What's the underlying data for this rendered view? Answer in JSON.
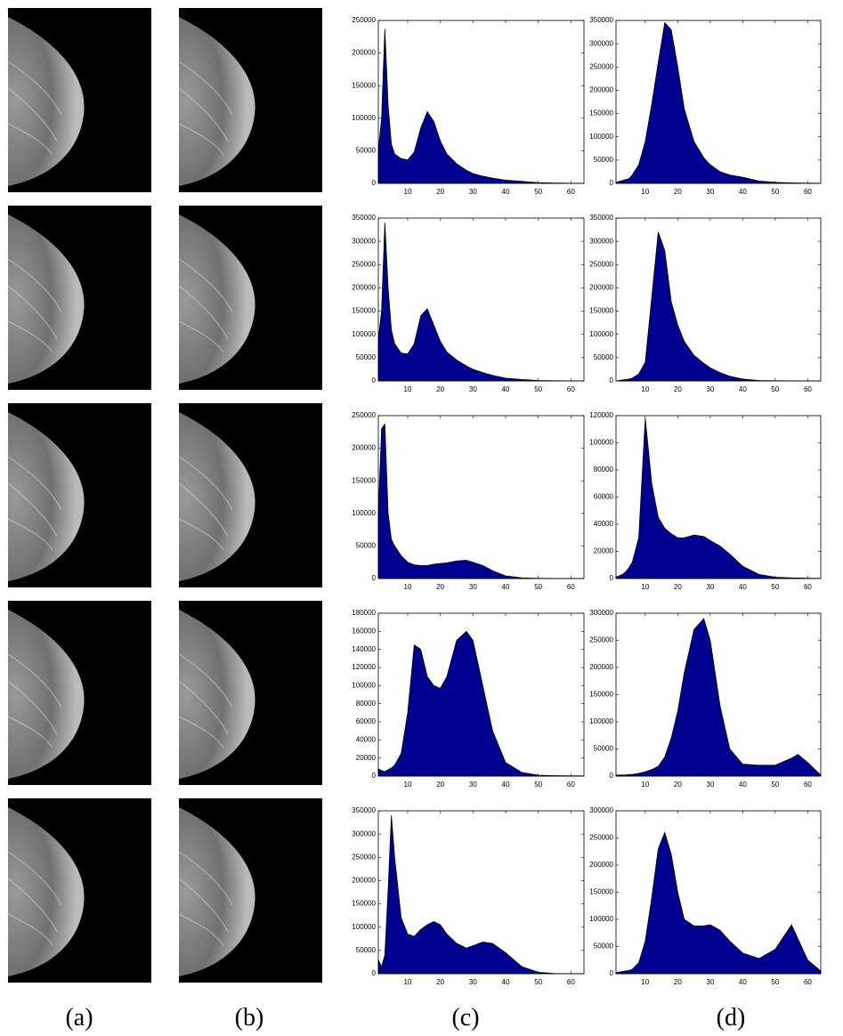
{
  "chart_data": [
    {
      "type": "area",
      "color": "#000090",
      "xlim": [
        1,
        64
      ],
      "xticks": [
        10,
        20,
        30,
        40,
        50,
        60
      ],
      "ylim": [
        0,
        250000
      ],
      "yticks": [
        0,
        50000,
        100000,
        150000,
        200000,
        250000
      ],
      "x": [
        1,
        2,
        3,
        4,
        5,
        6,
        8,
        10,
        12,
        14,
        16,
        18,
        20,
        22,
        25,
        28,
        30,
        33,
        36,
        40,
        45,
        50,
        55,
        60,
        64
      ],
      "values": [
        50000,
        100000,
        237000,
        120000,
        60000,
        45000,
        38000,
        36000,
        48000,
        85000,
        110000,
        95000,
        65000,
        45000,
        30000,
        20000,
        15000,
        11000,
        8000,
        5000,
        3000,
        1000,
        500,
        200,
        100
      ]
    },
    {
      "type": "area",
      "color": "#000090",
      "xlim": [
        1,
        64
      ],
      "xticks": [
        10,
        20,
        30,
        40,
        50,
        60
      ],
      "ylim": [
        0,
        350000
      ],
      "yticks": [
        0,
        50000,
        100000,
        150000,
        200000,
        250000,
        300000,
        350000
      ],
      "x": [
        1,
        2,
        3,
        4,
        5,
        6,
        8,
        10,
        12,
        14,
        16,
        18,
        20,
        22,
        25,
        28,
        30,
        33,
        36,
        40,
        45,
        50,
        55,
        60,
        64
      ],
      "values": [
        2000,
        4000,
        6000,
        8000,
        10000,
        18000,
        40000,
        90000,
        170000,
        260000,
        345000,
        330000,
        250000,
        160000,
        90000,
        55000,
        40000,
        25000,
        18000,
        13000,
        5000,
        2000,
        1000,
        500,
        200
      ]
    },
    {
      "type": "area",
      "color": "#000090",
      "xlim": [
        1,
        64
      ],
      "xticks": [
        10,
        20,
        30,
        40,
        50,
        60
      ],
      "ylim": [
        0,
        350000
      ],
      "yticks": [
        0,
        50000,
        100000,
        150000,
        200000,
        250000,
        300000,
        350000
      ],
      "x": [
        1,
        2,
        3,
        4,
        5,
        6,
        8,
        10,
        12,
        14,
        16,
        18,
        20,
        22,
        25,
        28,
        30,
        33,
        36,
        40,
        45,
        50,
        55,
        60,
        64
      ],
      "values": [
        90000,
        150000,
        340000,
        200000,
        110000,
        80000,
        60000,
        58000,
        80000,
        140000,
        155000,
        120000,
        85000,
        62000,
        45000,
        32000,
        25000,
        18000,
        12000,
        6000,
        3000,
        1000,
        500,
        200,
        100
      ]
    },
    {
      "type": "area",
      "color": "#000090",
      "xlim": [
        1,
        64
      ],
      "xticks": [
        10,
        20,
        30,
        40,
        50,
        60
      ],
      "ylim": [
        0,
        350000
      ],
      "yticks": [
        0,
        50000,
        100000,
        150000,
        200000,
        250000,
        300000,
        350000
      ],
      "x": [
        1,
        2,
        3,
        4,
        5,
        6,
        8,
        10,
        12,
        14,
        16,
        18,
        20,
        22,
        25,
        28,
        30,
        33,
        36,
        40,
        45,
        50,
        55,
        60,
        64
      ],
      "values": [
        0,
        1000,
        2000,
        3000,
        4000,
        6000,
        15000,
        40000,
        180000,
        320000,
        280000,
        170000,
        120000,
        85000,
        55000,
        38000,
        28000,
        18000,
        10000,
        4000,
        1000,
        500,
        200,
        100,
        0
      ]
    },
    {
      "type": "area",
      "color": "#000090",
      "xlim": [
        1,
        64
      ],
      "xticks": [
        10,
        20,
        30,
        40,
        50,
        60
      ],
      "ylim": [
        0,
        250000
      ],
      "yticks": [
        0,
        50000,
        100000,
        150000,
        200000,
        250000
      ],
      "x": [
        1,
        2,
        3,
        4,
        5,
        6,
        8,
        10,
        12,
        14,
        16,
        18,
        20,
        22,
        25,
        28,
        30,
        33,
        36,
        40,
        45,
        50,
        55,
        60,
        64
      ],
      "values": [
        100000,
        230000,
        237000,
        100000,
        60000,
        50000,
        35000,
        25000,
        21000,
        20000,
        20000,
        22000,
        23000,
        24000,
        27000,
        28000,
        25000,
        20000,
        12000,
        4000,
        1000,
        300,
        100,
        50,
        0
      ]
    },
    {
      "type": "area",
      "color": "#000090",
      "xlim": [
        1,
        64
      ],
      "xticks": [
        10,
        20,
        30,
        40,
        50,
        60
      ],
      "ylim": [
        0,
        120000
      ],
      "yticks": [
        0,
        20000,
        40000,
        60000,
        80000,
        100000,
        120000
      ],
      "x": [
        1,
        2,
        3,
        4,
        5,
        6,
        8,
        10,
        12,
        14,
        16,
        18,
        20,
        22,
        25,
        28,
        30,
        33,
        36,
        40,
        45,
        50,
        55,
        60,
        64
      ],
      "values": [
        1000,
        2000,
        3000,
        5000,
        8000,
        12000,
        30000,
        118000,
        70000,
        45000,
        37000,
        33000,
        30000,
        30000,
        32000,
        31000,
        28000,
        24000,
        18000,
        9000,
        3000,
        1000,
        500,
        200,
        100
      ]
    },
    {
      "type": "area",
      "color": "#000090",
      "xlim": [
        1,
        64
      ],
      "xticks": [
        10,
        20,
        30,
        40,
        50,
        60
      ],
      "ylim": [
        0,
        180000
      ],
      "yticks": [
        0,
        20000,
        40000,
        60000,
        80000,
        100000,
        120000,
        140000,
        160000,
        180000
      ],
      "x": [
        1,
        2,
        3,
        4,
        5,
        6,
        8,
        10,
        12,
        14,
        16,
        18,
        20,
        22,
        25,
        28,
        30,
        33,
        36,
        40,
        45,
        50,
        55,
        60,
        64
      ],
      "values": [
        8000,
        6000,
        5000,
        7000,
        9000,
        12000,
        25000,
        70000,
        145000,
        140000,
        110000,
        100000,
        97000,
        110000,
        150000,
        160000,
        150000,
        100000,
        50000,
        15000,
        4000,
        1000,
        500,
        300,
        200
      ]
    },
    {
      "type": "area",
      "color": "#000090",
      "xlim": [
        1,
        64
      ],
      "xticks": [
        10,
        20,
        30,
        40,
        50,
        60
      ],
      "ylim": [
        0,
        300000
      ],
      "yticks": [
        0,
        50000,
        100000,
        150000,
        200000,
        250000,
        300000
      ],
      "x": [
        1,
        2,
        3,
        4,
        5,
        6,
        8,
        10,
        12,
        14,
        16,
        18,
        20,
        22,
        25,
        28,
        30,
        33,
        36,
        40,
        45,
        50,
        55,
        57,
        60,
        64
      ],
      "values": [
        2000,
        2000,
        2000,
        2000,
        3000,
        3000,
        5000,
        8000,
        12000,
        18000,
        35000,
        70000,
        120000,
        190000,
        270000,
        290000,
        250000,
        130000,
        50000,
        22000,
        20000,
        20000,
        33000,
        40000,
        25000,
        2000
      ]
    },
    {
      "type": "area",
      "color": "#000090",
      "xlim": [
        1,
        64
      ],
      "xticks": [
        10,
        20,
        30,
        40,
        50,
        60
      ],
      "ylim": [
        0,
        350000
      ],
      "yticks": [
        0,
        50000,
        100000,
        150000,
        200000,
        250000,
        300000,
        350000
      ],
      "x": [
        1,
        2,
        3,
        4,
        5,
        6,
        8,
        10,
        12,
        14,
        16,
        18,
        20,
        22,
        25,
        28,
        30,
        33,
        36,
        40,
        45,
        50,
        55,
        60,
        64
      ],
      "values": [
        30000,
        15000,
        40000,
        180000,
        340000,
        250000,
        120000,
        85000,
        80000,
        95000,
        105000,
        112000,
        105000,
        85000,
        65000,
        55000,
        60000,
        68000,
        65000,
        45000,
        15000,
        3000,
        500,
        200,
        100
      ]
    },
    {
      "type": "area",
      "color": "#000090",
      "xlim": [
        1,
        64
      ],
      "xticks": [
        10,
        20,
        30,
        40,
        50,
        60
      ],
      "ylim": [
        0,
        300000
      ],
      "yticks": [
        0,
        50000,
        100000,
        150000,
        200000,
        250000,
        300000
      ],
      "x": [
        1,
        2,
        3,
        4,
        5,
        6,
        8,
        10,
        12,
        14,
        16,
        18,
        20,
        22,
        25,
        28,
        30,
        33,
        36,
        40,
        45,
        50,
        55,
        60,
        64
      ],
      "values": [
        2000,
        3000,
        4000,
        5000,
        6000,
        8000,
        20000,
        60000,
        140000,
        230000,
        260000,
        220000,
        150000,
        100000,
        88000,
        88000,
        90000,
        80000,
        60000,
        38000,
        28000,
        45000,
        90000,
        25000,
        5000
      ]
    }
  ],
  "panel_labels": [
    "(a)",
    "(b)",
    "(c)",
    "(d)"
  ]
}
